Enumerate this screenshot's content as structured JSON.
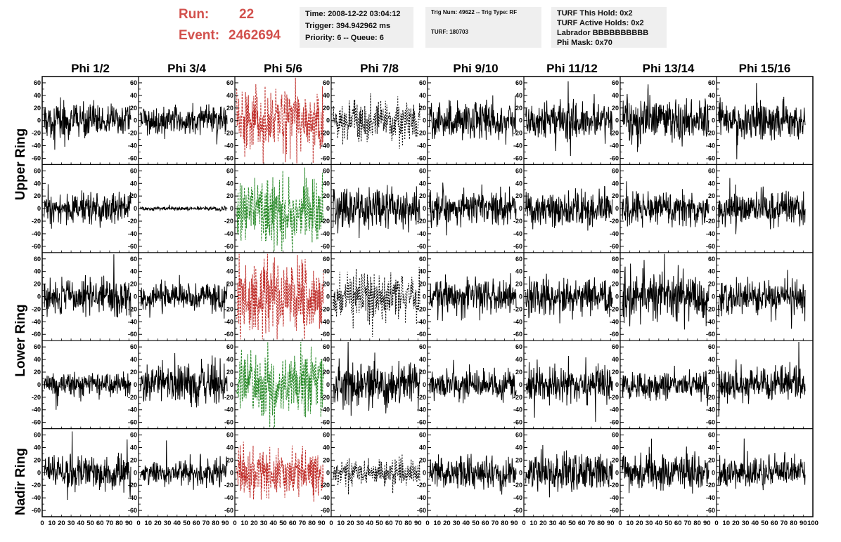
{
  "header": {
    "run_label": "Run:",
    "run_value": "22",
    "event_label": "Event:",
    "event_value": "2462694",
    "time_box": [
      "Time: 2008-12-22 03:04:12",
      "Trigger: 394.942962 ms",
      "Priority: 6 -- Queue: 6"
    ],
    "trig_box": [
      "Trig Num: 49622 -- Trig Type: RF",
      "TURF: 180703"
    ],
    "turf_box": [
      "TURF This Hold: 0x2",
      "TURF Active Holds: 0x2",
      "Labrador BBBBBBBBBB",
      "Phi Mask: 0x70"
    ]
  },
  "colors": {
    "trace": "#000000",
    "hit_red": "#c0302c",
    "hit_green": "#2a8a2a",
    "header_red": "#d2504c"
  },
  "chart_data": {
    "type": "line",
    "columns": [
      "Phi 1/2",
      "Phi 3/4",
      "Phi 5/6",
      "Phi 7/8",
      "Phi 9/10",
      "Phi 11/12",
      "Phi 13/14",
      "Phi 15/16"
    ],
    "rows": [
      "Upper Ring",
      "Lower Ring",
      "Nadir Ring"
    ],
    "xlim": [
      0,
      100
    ],
    "xticks": [
      0,
      10,
      20,
      30,
      40,
      50,
      60,
      70,
      80,
      90,
      100
    ],
    "xtick_labels": [
      "0",
      "10",
      "20",
      "30",
      "40",
      "50",
      "60",
      "70",
      "80",
      "90",
      "100"
    ],
    "ylim": [
      -70,
      70
    ],
    "yticks": [
      -60,
      -40,
      -20,
      0,
      20,
      40,
      60
    ],
    "ytick_labels": [
      "-60",
      "-40",
      "-20",
      "0",
      "20",
      "40",
      "60"
    ],
    "panels": [
      {
        "row": 0,
        "col": 0,
        "color": "black",
        "style": "solid",
        "amp": 16
      },
      {
        "row": 0,
        "col": 1,
        "color": "black",
        "style": "solid",
        "amp": 13
      },
      {
        "row": 0,
        "col": 2,
        "color": "red",
        "style": "dashed",
        "amp": 30
      },
      {
        "row": 0,
        "col": 3,
        "color": "black",
        "style": "dotted",
        "amp": 20
      },
      {
        "row": 0,
        "col": 4,
        "color": "black",
        "style": "solid",
        "amp": 18
      },
      {
        "row": 0,
        "col": 5,
        "color": "black",
        "style": "solid",
        "amp": 16
      },
      {
        "row": 0,
        "col": 6,
        "color": "black",
        "style": "solid",
        "amp": 20
      },
      {
        "row": 0,
        "col": 7,
        "color": "black",
        "style": "solid",
        "amp": 16
      },
      {
        "row": 1,
        "col": 0,
        "color": "black",
        "style": "solid",
        "amp": 15
      },
      {
        "row": 1,
        "col": 1,
        "color": "black",
        "style": "solid",
        "amp": 2
      },
      {
        "row": 1,
        "col": 2,
        "color": "green",
        "style": "dashed",
        "amp": 32
      },
      {
        "row": 1,
        "col": 3,
        "color": "black",
        "style": "solid",
        "amp": 20
      },
      {
        "row": 1,
        "col": 4,
        "color": "black",
        "style": "solid",
        "amp": 16
      },
      {
        "row": 1,
        "col": 5,
        "color": "black",
        "style": "solid",
        "amp": 16
      },
      {
        "row": 1,
        "col": 6,
        "color": "black",
        "style": "solid",
        "amp": 16
      },
      {
        "row": 1,
        "col": 7,
        "color": "black",
        "style": "solid",
        "amp": 16
      },
      {
        "row": 2,
        "col": 0,
        "color": "black",
        "style": "solid",
        "amp": 17
      },
      {
        "row": 2,
        "col": 1,
        "color": "black",
        "style": "solid",
        "amp": 13
      },
      {
        "row": 2,
        "col": 2,
        "color": "red",
        "style": "dashed",
        "amp": 33
      },
      {
        "row": 2,
        "col": 3,
        "color": "black",
        "style": "dotted",
        "amp": 22
      },
      {
        "row": 2,
        "col": 4,
        "color": "black",
        "style": "solid",
        "amp": 17
      },
      {
        "row": 2,
        "col": 5,
        "color": "black",
        "style": "solid",
        "amp": 17
      },
      {
        "row": 2,
        "col": 6,
        "color": "black",
        "style": "solid",
        "amp": 22
      },
      {
        "row": 2,
        "col": 7,
        "color": "black",
        "style": "solid",
        "amp": 16
      },
      {
        "row": 3,
        "col": 0,
        "color": "black",
        "style": "solid",
        "amp": 11
      },
      {
        "row": 3,
        "col": 1,
        "color": "black",
        "style": "solid",
        "amp": 18
      },
      {
        "row": 3,
        "col": 2,
        "color": "green",
        "style": "dashed",
        "amp": 30
      },
      {
        "row": 3,
        "col": 3,
        "color": "black",
        "style": "solid",
        "amp": 20
      },
      {
        "row": 3,
        "col": 4,
        "color": "black",
        "style": "solid",
        "amp": 15
      },
      {
        "row": 3,
        "col": 5,
        "color": "black",
        "style": "solid",
        "amp": 16
      },
      {
        "row": 3,
        "col": 6,
        "color": "black",
        "style": "solid",
        "amp": 13
      },
      {
        "row": 3,
        "col": 7,
        "color": "black",
        "style": "solid",
        "amp": 17
      },
      {
        "row": 4,
        "col": 0,
        "color": "black",
        "style": "solid",
        "amp": 17
      },
      {
        "row": 4,
        "col": 1,
        "color": "black",
        "style": "solid",
        "amp": 13
      },
      {
        "row": 4,
        "col": 2,
        "color": "red",
        "style": "dashed",
        "amp": 22
      },
      {
        "row": 4,
        "col": 3,
        "color": "black",
        "style": "dotted",
        "amp": 12
      },
      {
        "row": 4,
        "col": 4,
        "color": "black",
        "style": "solid",
        "amp": 15
      },
      {
        "row": 4,
        "col": 5,
        "color": "black",
        "style": "solid",
        "amp": 18
      },
      {
        "row": 4,
        "col": 6,
        "color": "black",
        "style": "solid",
        "amp": 17
      },
      {
        "row": 4,
        "col": 7,
        "color": "black",
        "style": "solid",
        "amp": 15
      }
    ]
  }
}
